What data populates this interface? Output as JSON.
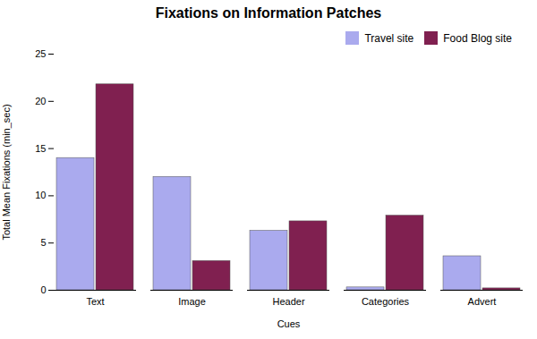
{
  "chart_data": {
    "type": "bar",
    "title": "Fixations on Information Patches",
    "xlabel": "Cues",
    "ylabel": "Total Mean Fixations (min_sec)",
    "categories": [
      "Text",
      "Image",
      "Header",
      "Categories",
      "Advert"
    ],
    "series": [
      {
        "name": "Travel site",
        "color": "#aaaaee",
        "values": [
          14,
          12,
          6.3,
          0.3,
          3.6
        ]
      },
      {
        "name": "Food Blog site",
        "color": "#802050",
        "values": [
          21.8,
          3.1,
          7.3,
          7.9,
          0.2
        ]
      }
    ],
    "ylim": [
      0,
      25
    ],
    "yticks": [
      0,
      5,
      10,
      15,
      20,
      25
    ],
    "legend": "upper right",
    "grid": false
  }
}
